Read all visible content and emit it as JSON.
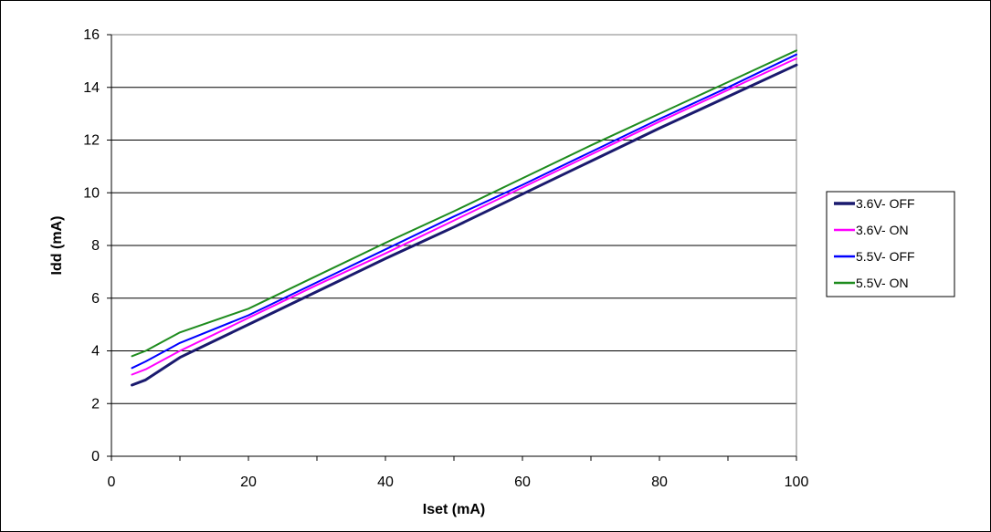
{
  "chart_data": {
    "type": "line",
    "title": "",
    "xlabel": "Iset (mA)",
    "ylabel": "Idd (mA)",
    "xlim": [
      0,
      100
    ],
    "ylim": [
      0,
      16
    ],
    "x_ticks": [
      0,
      20,
      40,
      60,
      80,
      100
    ],
    "x_tick_labels": [
      "0",
      "20",
      "40",
      "60",
      "80",
      "100"
    ],
    "x_minor_step": 10,
    "y_ticks": [
      0,
      2,
      4,
      6,
      8,
      10,
      12,
      14,
      16
    ],
    "y_tick_labels": [
      "0",
      "2",
      "4",
      "6",
      "8",
      "10",
      "12",
      "14",
      "16"
    ],
    "grid": "horizontal",
    "legend_position": "right",
    "series": [
      {
        "name": "3.6V- OFF",
        "color": "#1a1a6e",
        "line_width": 3,
        "x": [
          3,
          5,
          10,
          20,
          30,
          40,
          50,
          60,
          70,
          80,
          90,
          100
        ],
        "y": [
          2.7,
          2.9,
          3.75,
          5.0,
          6.25,
          7.5,
          8.7,
          9.95,
          11.2,
          12.45,
          13.65,
          14.85
        ]
      },
      {
        "name": "3.6V- ON",
        "color": "#ff00ff",
        "line_width": 2,
        "x": [
          3,
          5,
          10,
          20,
          30,
          40,
          50,
          60,
          70,
          80,
          90,
          100
        ],
        "y": [
          3.1,
          3.3,
          4.0,
          5.25,
          6.5,
          7.7,
          8.95,
          10.2,
          11.45,
          12.7,
          13.9,
          15.1
        ]
      },
      {
        "name": "5.5V- OFF",
        "color": "#0000ff",
        "line_width": 2,
        "x": [
          3,
          5,
          10,
          20,
          30,
          40,
          50,
          60,
          70,
          80,
          90,
          100
        ],
        "y": [
          3.35,
          3.6,
          4.3,
          5.35,
          6.6,
          7.85,
          9.1,
          10.3,
          11.55,
          12.8,
          14.0,
          15.25
        ]
      },
      {
        "name": "5.5V- ON",
        "color": "#1e8c1e",
        "line_width": 2,
        "x": [
          3,
          5,
          10,
          20,
          30,
          40,
          50,
          60,
          70,
          80,
          90,
          100
        ],
        "y": [
          3.8,
          4.0,
          4.7,
          5.6,
          6.85,
          8.1,
          9.3,
          10.55,
          11.8,
          13.0,
          14.2,
          15.4
        ]
      }
    ]
  }
}
